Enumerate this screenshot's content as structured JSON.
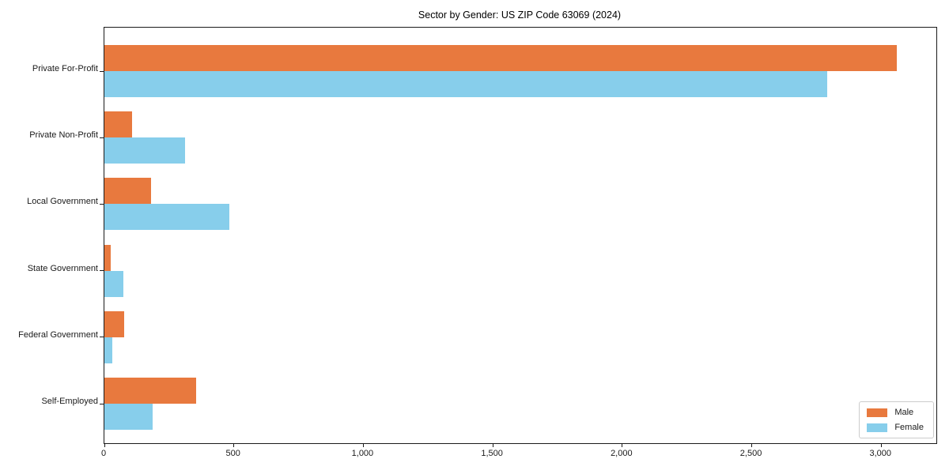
{
  "chart_data": {
    "type": "bar",
    "orientation": "horizontal",
    "title": "Sector by Gender: US ZIP Code 63069 (2024)",
    "categories": [
      "Private For-Profit",
      "Private Non-Profit",
      "Local Government",
      "State Government",
      "Federal Government",
      "Self-Employed"
    ],
    "series": [
      {
        "name": "Male",
        "color": "#e8793e",
        "values": [
          3060,
          108,
          181,
          25,
          77,
          355
        ]
      },
      {
        "name": "Female",
        "color": "#87ceeb",
        "values": [
          2790,
          311,
          484,
          73,
          31,
          187
        ]
      }
    ],
    "xlabel": "",
    "ylabel": "",
    "xlim": [
      0,
      3213
    ],
    "xtick_values": [
      0,
      500,
      1000,
      1500,
      2000,
      2500,
      3000
    ],
    "xtick_labels": [
      "0",
      "500",
      "1,000",
      "1,500",
      "2,000",
      "2,500",
      "3,000"
    ],
    "grid": false,
    "legend": {
      "position": "lower right"
    }
  }
}
